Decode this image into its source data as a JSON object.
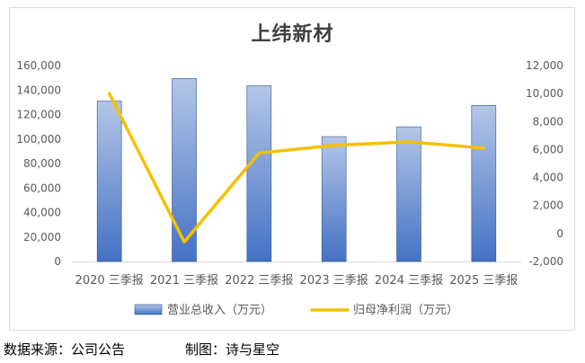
{
  "chart_data": {
    "type": "bar+line",
    "title": "上纬新材",
    "categories": [
      "2020 三季报",
      "2021 三季报",
      "2022 三季报",
      "2023 三季报",
      "2024 三季报",
      "2025 三季报"
    ],
    "series": [
      {
        "name": "营业总收入（万元）",
        "type": "bar",
        "axis": "left",
        "values": [
          131000,
          149500,
          143500,
          102000,
          110000,
          127500
        ],
        "color": "#4472c4"
      },
      {
        "name": "归母净利润（万元）",
        "type": "line",
        "axis": "right",
        "values": [
          10000,
          -600,
          5750,
          6300,
          6550,
          6100
        ],
        "color": "#f5c000"
      }
    ],
    "left_axis": {
      "ylim": [
        0,
        160000
      ],
      "ticks": [
        0,
        20000,
        40000,
        60000,
        80000,
        100000,
        120000,
        140000,
        160000
      ],
      "tick_labels": [
        "0",
        "20,000",
        "40,000",
        "60,000",
        "80,000",
        "100,000",
        "120,000",
        "140,000",
        "160,000"
      ]
    },
    "right_axis": {
      "ylim": [
        -2000,
        12000
      ],
      "ticks": [
        -2000,
        0,
        2000,
        4000,
        6000,
        8000,
        10000,
        12000
      ],
      "tick_labels": [
        "-2,000",
        "0",
        "2,000",
        "4,000",
        "6,000",
        "8,000",
        "10,000",
        "12,000"
      ]
    },
    "grid": false,
    "legend_position": "bottom"
  },
  "footer": {
    "source": "数据来源：公司公告",
    "maker": "制图：诗与星空"
  }
}
